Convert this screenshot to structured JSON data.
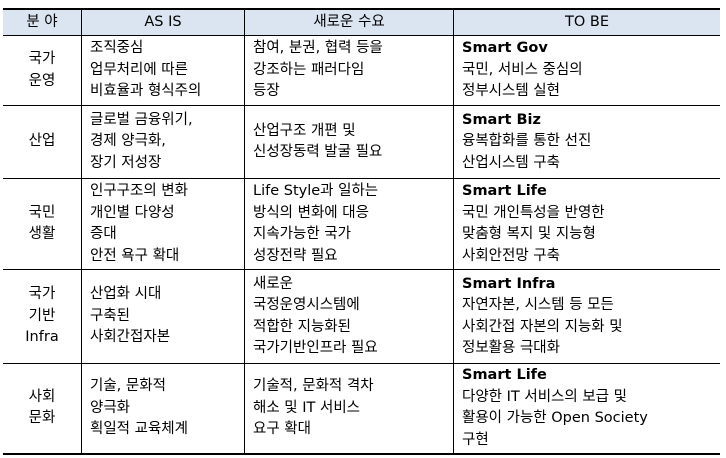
{
  "headers": [
    "분 야",
    "AS IS",
    "새로운 수요",
    "TO BE"
  ],
  "rows": [
    {
      "field": [
        "국가",
        "운영"
      ],
      "as_is": [
        "조직중심",
        "업무처리에 따른",
        "비효율과 형식주의"
      ],
      "demand": [
        "참여, 분권, 협력 등을",
        "강조하는 패러다임",
        "등장"
      ],
      "to_be": [
        "Smart Gov",
        "국민, 서비스 중심의",
        "정부시스템 실현"
      ]
    },
    {
      "field": [
        "산업"
      ],
      "as_is": [
        "글로벌 금융위기,",
        "경제 양극화,",
        "장기 저성장"
      ],
      "demand": [
        "산업구조 개편 및",
        "신성장동력 발굴 필요"
      ],
      "to_be": [
        "Smart Biz",
        "융복합화를 통한 선진",
        "산업시스템 구축"
      ]
    },
    {
      "field": [
        "국민",
        "생활"
      ],
      "as_is": [
        "인구구조의 변화",
        "개인별 다양성",
        "증대",
        "안전 욕구 확대"
      ],
      "demand": [
        "Life Style과 일하는",
        "방식의 변화에 대응",
        "지속가능한 국가",
        "성장전략 필요"
      ],
      "to_be": [
        "Smart Life",
        "국민 개인특성을 반영한",
        "맞춤형 복지 및 지능형",
        "사회안전망 구축"
      ]
    },
    {
      "field": [
        "국가",
        "기반",
        "Infra"
      ],
      "as_is": [
        "산업화 시대",
        "구축된",
        "사회간접자본"
      ],
      "demand": [
        "새로운",
        "국정운영시스템에",
        "적합한 지능화된",
        "국가기반인프라 필요"
      ],
      "to_be": [
        "Smart Infra",
        "자연자본, 시스템 등 모든",
        "사회간접 자본의 지능화 및",
        "정보활용 극대화"
      ]
    },
    {
      "field": [
        "사회",
        "문화"
      ],
      "as_is": [
        "기술, 문화적",
        "양극화",
        "획일적 교육체계"
      ],
      "demand": [
        "기술적, 문화적 격차",
        "해소 및 IT 서비스",
        "요구 확대"
      ],
      "to_be": [
        "Smart Life",
        "다양한 IT 서비스의 보급 및",
        "활용이 가능한 Open Society",
        "구현"
      ]
    }
  ]
}
